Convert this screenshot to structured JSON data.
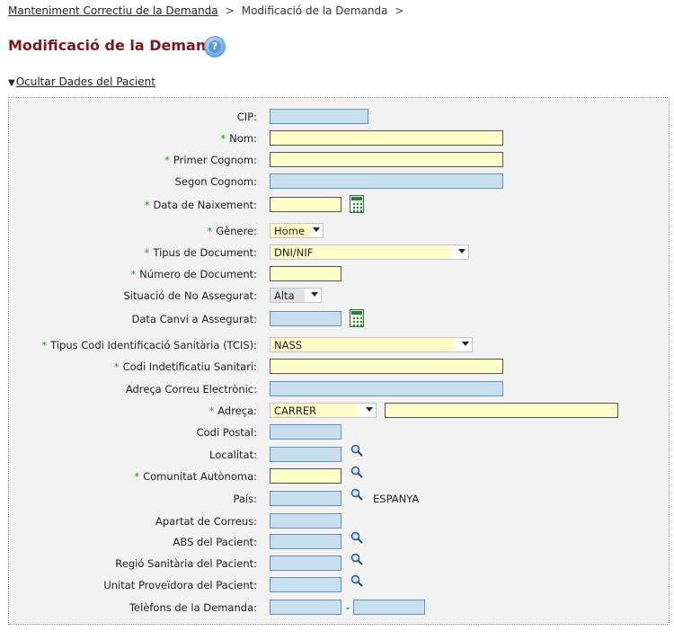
{
  "breadcrumb": {
    "parent": "Manteniment Correctiu de la Demanda",
    "current": "Modificació de la Demanda",
    "sep1": ">",
    "sep2": ">"
  },
  "page_title": "Modificació de la Demanda",
  "help": {
    "icon": "help-icon",
    "glyph": "?"
  },
  "toggle": {
    "arrow": "▼",
    "label": "Ocultar Dades del Pacient"
  },
  "form": {
    "required_mark": "*",
    "fields": {
      "cip": {
        "label": "CIP:",
        "value": ""
      },
      "nom": {
        "label": "Nom:",
        "value": ""
      },
      "primer_cognom": {
        "label": "Primer Cognom:",
        "value": ""
      },
      "segon_cognom": {
        "label": "Segon Cognom:",
        "value": ""
      },
      "data_naixement": {
        "label": "Data de Naixement:",
        "value": ""
      },
      "genere": {
        "label": "Gènere:",
        "selected": "Home"
      },
      "tipus_document": {
        "label": "Tipus de Document:",
        "selected": "DNI/NIF"
      },
      "numero_document": {
        "label": "Número de Document:",
        "value": ""
      },
      "situacio_no_assegurat": {
        "label": "Situació de No Assegurat:",
        "selected": "Alta"
      },
      "data_canvi_assegurat": {
        "label": "Data Canvi a Assegurat:",
        "value": ""
      },
      "tipus_codi_tcis": {
        "label": "Tipus Codi Identificació Sanitària (TCIS):",
        "selected": "NASS"
      },
      "codi_sanitari": {
        "label": "Codi Indetificatiu Sanitari:",
        "value": ""
      },
      "email": {
        "label": "Adreça Correu Electrònic:",
        "value": ""
      },
      "adreca": {
        "label": "Adreça:",
        "selected": "CARRER",
        "value": ""
      },
      "codi_postal": {
        "label": "Codi Postal:",
        "value": ""
      },
      "localitat": {
        "label": "Localitat:",
        "value": ""
      },
      "comunitat": {
        "label": "Comunitat Autònoma:",
        "value": ""
      },
      "pais": {
        "label": "País:",
        "value": "",
        "display": "ESPANYA"
      },
      "apartat": {
        "label": "Apartat de Correus:",
        "value": ""
      },
      "abs": {
        "label": "ABS del Pacient:",
        "value": ""
      },
      "regio": {
        "label": "Regió Sanitària del Pacient:",
        "value": ""
      },
      "unitat": {
        "label": "Unitat Proveïdora del Pacient:",
        "value": ""
      },
      "telefons": {
        "label": "Telèfons de la Demanda:",
        "separator": "-",
        "value1": "",
        "value2": ""
      }
    }
  },
  "colors": {
    "title": "#7a1a1a",
    "field_blue": "#c7dfee",
    "field_yellow": "#ffffc8",
    "required_star": "#3a8a3a",
    "panel_bg": "#f2f2f2"
  }
}
